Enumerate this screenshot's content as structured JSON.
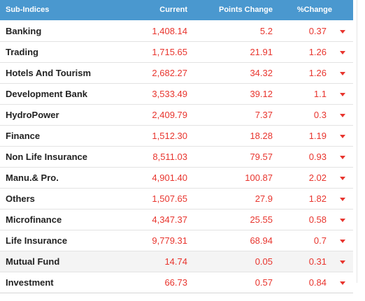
{
  "header": {
    "name": "Sub-Indices",
    "current": "Current",
    "points_change": "Points Change",
    "pct_change": "%Change"
  },
  "rows": [
    {
      "name": "Banking",
      "current": "1,408.14",
      "points": "5.2",
      "pct": "0.37",
      "trend": "down-arrow-icon"
    },
    {
      "name": "Trading",
      "current": "1,715.65",
      "points": "21.91",
      "pct": "1.26",
      "trend": "down-arrow-icon"
    },
    {
      "name": "Hotels And Tourism",
      "current": "2,682.27",
      "points": "34.32",
      "pct": "1.26",
      "trend": "down-arrow-icon"
    },
    {
      "name": "Development Bank",
      "current": "3,533.49",
      "points": "39.12",
      "pct": "1.1",
      "trend": "down-arrow-icon"
    },
    {
      "name": "HydroPower",
      "current": "2,409.79",
      "points": "7.37",
      "pct": "0.3",
      "trend": "down-arrow-icon"
    },
    {
      "name": "Finance",
      "current": "1,512.30",
      "points": "18.28",
      "pct": "1.19",
      "trend": "down-arrow-icon"
    },
    {
      "name": "Non Life Insurance",
      "current": "8,511.03",
      "points": "79.57",
      "pct": "0.93",
      "trend": "down-arrow-icon"
    },
    {
      "name": "Manu.& Pro.",
      "current": "4,901.40",
      "points": "100.87",
      "pct": "2.02",
      "trend": "down-arrow-icon"
    },
    {
      "name": "Others",
      "current": "1,507.65",
      "points": "27.9",
      "pct": "1.82",
      "trend": "down-arrow-icon"
    },
    {
      "name": "Microfinance",
      "current": "4,347.37",
      "points": "25.55",
      "pct": "0.58",
      "trend": "down-arrow-icon"
    },
    {
      "name": "Life Insurance",
      "current": "9,779.31",
      "points": "68.94",
      "pct": "0.7",
      "trend": "down-arrow-icon"
    },
    {
      "name": "Mutual Fund",
      "current": "14.74",
      "points": "0.05",
      "pct": "0.31",
      "trend": "down-arrow-icon"
    },
    {
      "name": "Investment",
      "current": "66.73",
      "points": "0.57",
      "pct": "0.84",
      "trend": "down-arrow-icon"
    }
  ],
  "colors": {
    "header_bg": "#4a98cf",
    "negative": "#e8342d",
    "row_highlight": "#f4f4f4"
  }
}
